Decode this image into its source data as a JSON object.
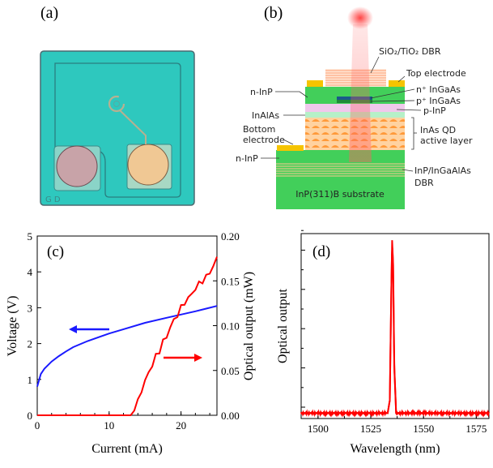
{
  "panels": {
    "a": {
      "label": "(a)",
      "photo_marking": "G D"
    },
    "b": {
      "label": "(b)",
      "layers": {
        "top_dbr": "SiO₂/TiO₂ DBR",
        "top_electrode": "Top electrode",
        "n_inp_top": "n-InP",
        "n_ingaas": "n⁺ InGaAs",
        "p_ingaas": "p⁺ InGaAs",
        "p_inp": "p-InP",
        "inalas": "InAlAs",
        "bottom_electrode_1": "Bottom",
        "bottom_electrode_2": "electrode",
        "active_1": "InAs QD",
        "active_2": "active layer",
        "n_inp_bottom": "n-InP",
        "bottom_dbr_1": "InP/InGaAlAs",
        "bottom_dbr_2": "DBR",
        "substrate": "InP(311)B substrate"
      },
      "colors": {
        "green": "#3fcf5f",
        "gold": "#f5c400",
        "pink": "#f0c8e8",
        "orange": "#ffc890",
        "beam": "#ff4040"
      }
    }
  },
  "chart_data": [
    {
      "type": "line",
      "panel_label": "(c)",
      "xlabel": "Current (mA)",
      "ylabel": "Voltage (V)",
      "y2label": "Optical output (mW)",
      "xlim": [
        0,
        25
      ],
      "ylim": [
        0,
        5
      ],
      "y2lim": [
        0,
        0.2
      ],
      "xticks": [
        "0",
        "10",
        "20"
      ],
      "yticks": [
        "0",
        "1",
        "2",
        "3",
        "4",
        "5"
      ],
      "y2ticks": [
        "0.00",
        "0.05",
        "0.10",
        "0.15",
        "0.20"
      ],
      "grid": false,
      "series": [
        {
          "axis": "left",
          "color": "#1a1aff",
          "arrow": "left",
          "x": [
            0,
            0.5,
            1,
            2,
            3,
            4,
            5,
            7,
            10,
            12,
            15,
            18,
            20,
            22,
            25
          ],
          "y": [
            0.8,
            1.15,
            1.3,
            1.5,
            1.65,
            1.78,
            1.9,
            2.07,
            2.28,
            2.4,
            2.58,
            2.72,
            2.81,
            2.9,
            3.05
          ]
        },
        {
          "axis": "right",
          "color": "#ff0000",
          "arrow": "right",
          "x": [
            0,
            13,
            13.5,
            14,
            14.5,
            15,
            15.5,
            16,
            16.5,
            17,
            17.5,
            18,
            18.5,
            19,
            19.5,
            20,
            20.5,
            21,
            21.5,
            22,
            22.5,
            23,
            23.5,
            24,
            24.5,
            25
          ],
          "y": [
            0,
            0,
            0.008,
            0.015,
            0.028,
            0.038,
            0.048,
            0.056,
            0.066,
            0.072,
            0.082,
            0.088,
            0.098,
            0.106,
            0.112,
            0.12,
            0.126,
            0.13,
            0.136,
            0.141,
            0.147,
            0.15,
            0.154,
            0.16,
            0.166,
            0.176
          ]
        }
      ]
    },
    {
      "type": "line",
      "panel_label": "(d)",
      "xlabel": "Wavelength (nm)",
      "ylabel": "Optical output",
      "xlim": [
        1492,
        1581
      ],
      "ylim": [
        0,
        1
      ],
      "xticks": [
        "1500",
        "1525",
        "1550",
        "1575"
      ],
      "grid": false,
      "series": [
        {
          "color": "#ff0000",
          "x": [
            1492,
            1533,
            1534,
            1534.6,
            1535.1,
            1535.6,
            1536.1,
            1537,
            1581
          ],
          "y": [
            0.03,
            0.03,
            0.1,
            0.6,
            0.99,
            0.85,
            0.3,
            0.03,
            0.03
          ]
        }
      ]
    }
  ]
}
